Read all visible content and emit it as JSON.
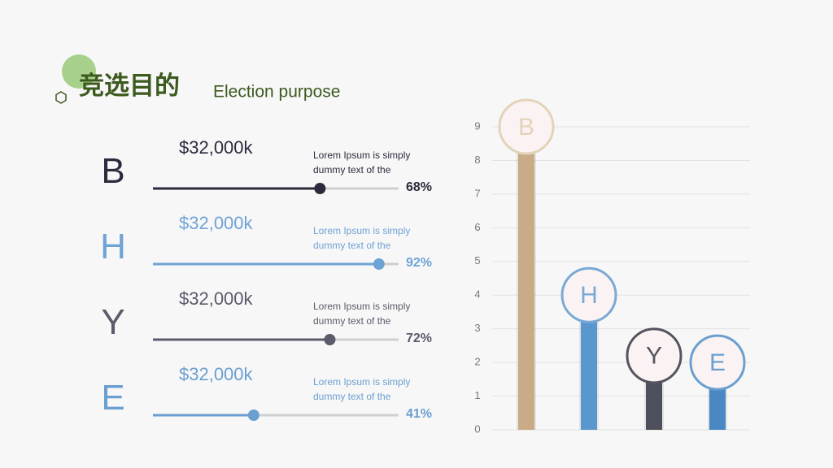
{
  "header": {
    "title": "竞选目的",
    "subtitle": "Election purpose"
  },
  "progress": {
    "type": "progress",
    "categories": [
      "B",
      "H",
      "Y",
      "E"
    ],
    "amounts": [
      "$32,000k",
      "$32,000k",
      "$32,000k",
      "$32,000k"
    ],
    "descriptions": [
      "Lorem Ipsum is simply dummy text of the",
      "Lorem Ipsum is simply dummy text of the",
      "Lorem Ipsum is simply dummy text of the",
      "Lorem Ipsum is simply dummy text of the"
    ],
    "values": [
      68,
      92,
      72,
      41
    ],
    "value_labels": [
      "68%",
      "92%",
      "72%",
      "41%"
    ],
    "colors": [
      "#2b2b3d",
      "#6fa3d5",
      "#5b5b6b",
      "#6a9fd0"
    ]
  },
  "chart_data": {
    "type": "lollipop",
    "categories": [
      "B",
      "H",
      "Y",
      "E"
    ],
    "values": [
      9,
      4,
      2.2,
      2
    ],
    "colors": [
      "#c9ab88",
      "#5b97cf",
      "#4d4f5c",
      "#4a88c4"
    ],
    "ring_colors": [
      "#e3d3b8",
      "#79a9d6",
      "#55545f",
      "#6a9fd0"
    ],
    "ylim": [
      0,
      9
    ],
    "yticks": [
      0,
      1,
      2,
      3,
      4,
      5,
      6,
      7,
      8,
      9
    ],
    "grid": true
  }
}
